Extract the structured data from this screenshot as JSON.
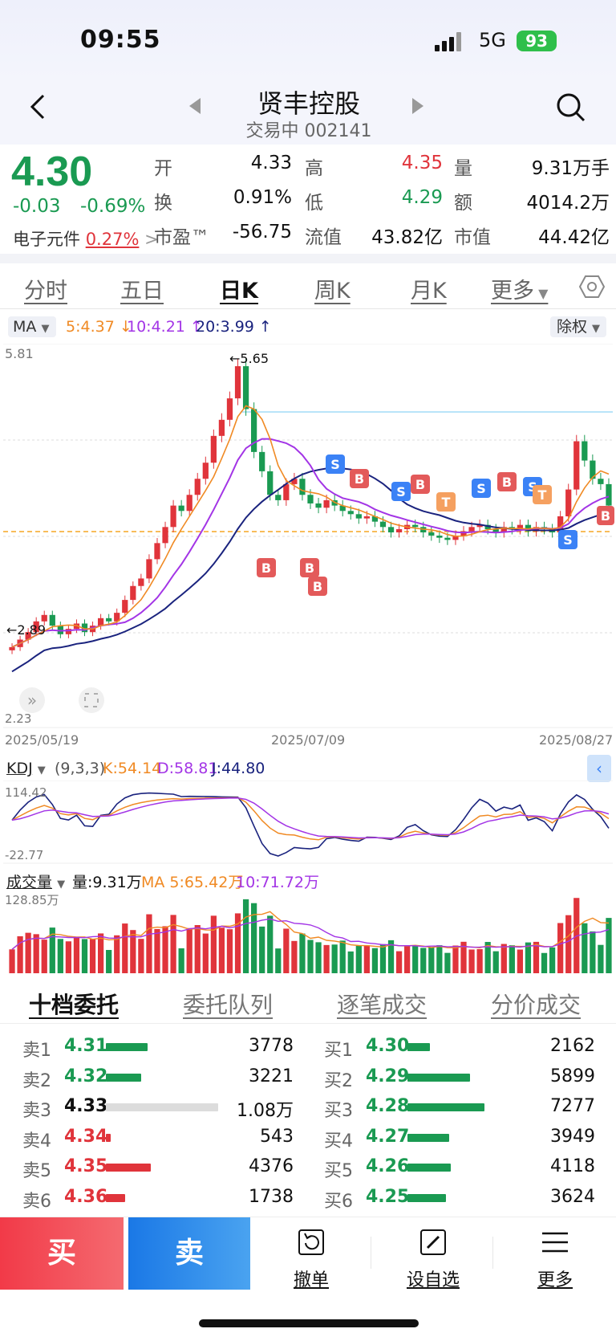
{
  "status": {
    "time": "09:55",
    "network": "5G",
    "battery": "93"
  },
  "header": {
    "title": "贤丰控股",
    "subtitle": "交易中 002141"
  },
  "quote": {
    "price": "4.30",
    "change": "-0.03",
    "change_pct": "-0.69%",
    "sector_name": "电子元件",
    "sector_pct": "0.27%",
    "open_label": "开",
    "open": "4.33",
    "high_label": "高",
    "high": "4.35",
    "volume_label": "量",
    "volume": "9.31万手",
    "turnover_label": "换",
    "turnover": "0.91%",
    "low_label": "低",
    "low": "4.29",
    "amount_label": "额",
    "amount": "4014.2万",
    "pe_label": "市盈™",
    "pe": "-56.75",
    "float_label": "流值",
    "float_cap": "43.82亿",
    "cap_label": "市值",
    "market_cap": "44.42亿"
  },
  "tabs": [
    "分时",
    "五日",
    "日K",
    "周K",
    "月K",
    "更多"
  ],
  "ma": {
    "label": "MA",
    "ma5": "5:4.37",
    "ma10": "10:4.21",
    "ma20": "20:3.99",
    "adjust": "除权"
  },
  "colors": {
    "up": "#e0343b",
    "down": "#1a9a52",
    "ma5": "#f08a24",
    "ma10": "#a335e6",
    "ma20": "#1a237e"
  },
  "chart_data": {
    "type": "candlestick",
    "y_max_label": "5.81",
    "y_min_label": "2.23",
    "high_annotation": "5.65",
    "low_annotation": "2.89",
    "ylim": [
      2.23,
      5.81
    ],
    "dates": [
      "2025/05/19",
      "2025/07/09",
      "2025/08/27"
    ],
    "closes": [
      2.98,
      3.05,
      3.12,
      3.22,
      3.28,
      3.18,
      3.1,
      3.15,
      3.2,
      3.12,
      3.18,
      3.25,
      3.22,
      3.3,
      3.42,
      3.55,
      3.62,
      3.8,
      3.95,
      4.1,
      4.3,
      4.25,
      4.4,
      4.55,
      4.7,
      4.95,
      5.1,
      5.3,
      5.6,
      5.2,
      4.8,
      4.62,
      4.4,
      4.35,
      4.5,
      4.55,
      4.4,
      4.32,
      4.28,
      4.35,
      4.3,
      4.25,
      4.22,
      4.18,
      4.2,
      4.15,
      4.1,
      4.05,
      4.08,
      4.12,
      4.1,
      4.05,
      4.02,
      4.0,
      3.98,
      4.02,
      4.06,
      4.1,
      4.12,
      4.08,
      4.05,
      4.1,
      4.08,
      4.12,
      4.06,
      4.1,
      4.08,
      4.05,
      4.2,
      4.45,
      4.9,
      4.72,
      4.55,
      4.5,
      4.3
    ]
  },
  "kdj": {
    "label": "KDJ",
    "params": "(9,3,3)",
    "k": "K:54.14",
    "d": "D:58.81",
    "j": "J:44.80",
    "max": "114.42",
    "min": "-22.77"
  },
  "volume_panel": {
    "label": "成交量",
    "vol": "量:9.31万",
    "ma5": "MA 5:65.42万",
    "ma10": "10:71.72万",
    "max": "128.85万"
  },
  "order_tabs": [
    "十档委托",
    "委托队列",
    "逐笔成交",
    "分价成交"
  ],
  "asks": [
    {
      "label": "卖1",
      "price": "4.31",
      "qty": "3778"
    },
    {
      "label": "卖2",
      "price": "4.32",
      "qty": "3221"
    },
    {
      "label": "卖3",
      "price": "4.33",
      "qty": "1.08万"
    },
    {
      "label": "卖4",
      "price": "4.34",
      "qty": "543"
    },
    {
      "label": "卖5",
      "price": "4.35",
      "qty": "4376"
    },
    {
      "label": "卖6",
      "price": "4.36",
      "qty": "1738"
    }
  ],
  "bids": [
    {
      "label": "买1",
      "price": "4.30",
      "qty": "2162"
    },
    {
      "label": "买2",
      "price": "4.29",
      "qty": "5899"
    },
    {
      "label": "买3",
      "price": "4.28",
      "qty": "7277"
    },
    {
      "label": "买4",
      "price": "4.27",
      "qty": "3949"
    },
    {
      "label": "买5",
      "price": "4.26",
      "qty": "4118"
    },
    {
      "label": "买6",
      "price": "4.25",
      "qty": "3624"
    }
  ],
  "bottom": {
    "buy": "买",
    "sell": "卖",
    "cancel": "撤单",
    "watchlist": "设自选",
    "more": "更多"
  }
}
